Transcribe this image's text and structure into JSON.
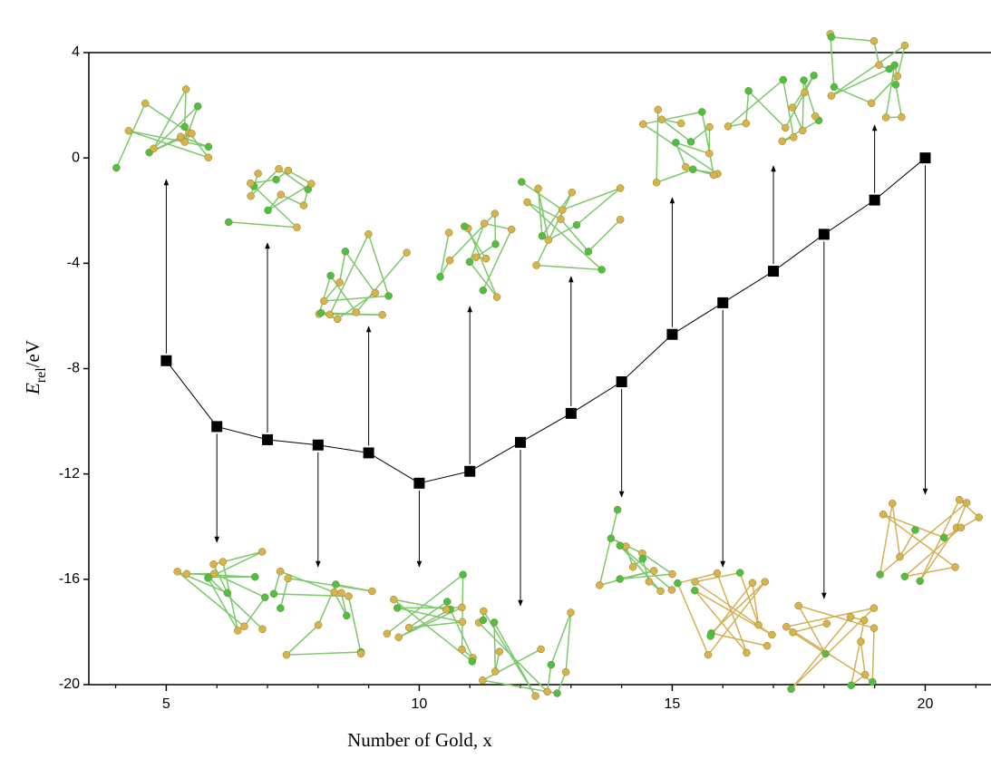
{
  "chart_data": {
    "type": "line",
    "x_label": "Number of Gold, x",
    "y_label": {
      "main": "E",
      "sub": "rel",
      "unit": "/eV"
    },
    "x": [
      5,
      6,
      7,
      8,
      9,
      10,
      11,
      12,
      13,
      14,
      15,
      16,
      17,
      18,
      19,
      20
    ],
    "series": [
      {
        "color": "#000000",
        "values": [
          -7.7,
          -10.2,
          -10.7,
          -10.9,
          -11.2,
          -12.35,
          -11.9,
          -10.8,
          -9.7,
          -8.5,
          -6.7,
          -5.5,
          -4.3,
          -2.9,
          -1.6,
          0
        ]
      }
    ],
    "xlim": [
      3.47,
      21.3
    ],
    "ylim": [
      -20,
      4
    ],
    "xticks": [
      5,
      10,
      15,
      20
    ],
    "xminorticks": [
      4,
      6,
      7,
      8,
      9,
      11,
      12,
      13,
      14,
      16,
      17,
      18,
      19,
      21
    ],
    "yticks": [
      -20,
      -16,
      -12,
      -8,
      -4,
      0,
      4
    ]
  }
}
